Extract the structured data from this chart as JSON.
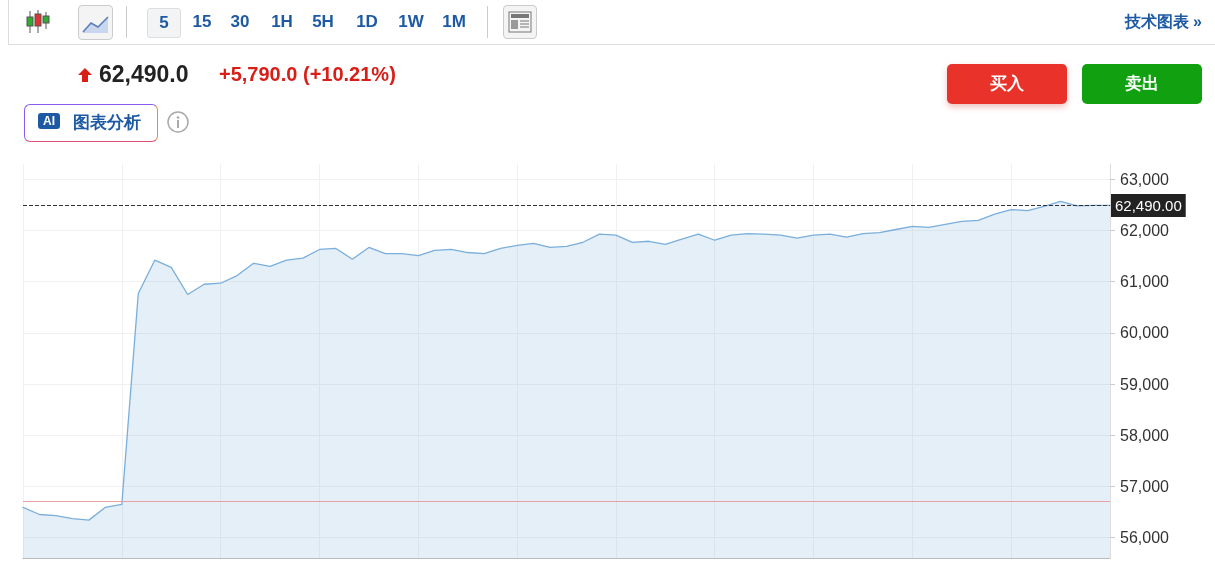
{
  "chart_data": {
    "type": "area",
    "title": "62,490.0",
    "subtitle": "+5,790.0 (+10.21%)",
    "annotations": [
      "5",
      "15",
      "30",
      "1H",
      "5H",
      "1D",
      "1W",
      "1M",
      "技术图表 »",
      "AI",
      "图表分析",
      "买入",
      "卖出"
    ],
    "categories": [
      null,
      null,
      null,
      null,
      null,
      null,
      null,
      null,
      null,
      null,
      null,
      null,
      null,
      null,
      null,
      null,
      null,
      null,
      null,
      null,
      null,
      null,
      null,
      null,
      null,
      null,
      null,
      null,
      null,
      null,
      null,
      null,
      null,
      null,
      null,
      null,
      null,
      null,
      null,
      null,
      null,
      null,
      null,
      null,
      null,
      null,
      null,
      null,
      null,
      null,
      null,
      null,
      null,
      null,
      null,
      null,
      null,
      null,
      null,
      null,
      null,
      null,
      null,
      null,
      null,
      null,
      null
    ],
    "series": [
      {
        "color": "#7aaedb",
        "values": [
          56590,
          56450,
          56430,
          56370,
          56340,
          56590,
          56650,
          60770,
          61420,
          61280,
          60750,
          60950,
          60970,
          61120,
          61360,
          61300,
          61420,
          61460,
          61630,
          61650,
          61440,
          61670,
          61550,
          61550,
          61510,
          61610,
          61630,
          61570,
          61550,
          61650,
          61710,
          61750,
          61670,
          61690,
          61770,
          61930,
          61910,
          61770,
          61790,
          61730,
          61830,
          61930,
          61810,
          61910,
          61940,
          61930,
          61910,
          61850,
          61910,
          61930,
          61870,
          61940,
          61960,
          62020,
          62080,
          62060,
          62120,
          62180,
          62200,
          62320,
          62410,
          62390,
          62470,
          62570,
          62480,
          62490,
          62490
        ]
      }
    ],
    "ylim": [
      55600,
      63300
    ],
    "yticks": [
      {
        "value": 56000,
        "label": "56,000"
      },
      {
        "value": 57000,
        "label": "57,000"
      },
      {
        "value": 58000,
        "label": "58,000"
      },
      {
        "value": 59000,
        "label": "59,000"
      },
      {
        "value": 60000,
        "label": "60,000"
      },
      {
        "value": 61000,
        "label": "61,000"
      },
      {
        "value": 62000,
        "label": "62,000"
      },
      {
        "value": 63000,
        "label": "63,000"
      }
    ],
    "ref_lines": [
      {
        "axis": "y",
        "value": 62490,
        "label": "62,490.00",
        "color": "#333333",
        "line_style": "dashed"
      },
      {
        "axis": "y",
        "value": 56700,
        "label": null,
        "color": "#e8a0a0",
        "line_style": "solid"
      }
    ],
    "grid": true,
    "marker": "none",
    "line_style": "solid"
  }
}
